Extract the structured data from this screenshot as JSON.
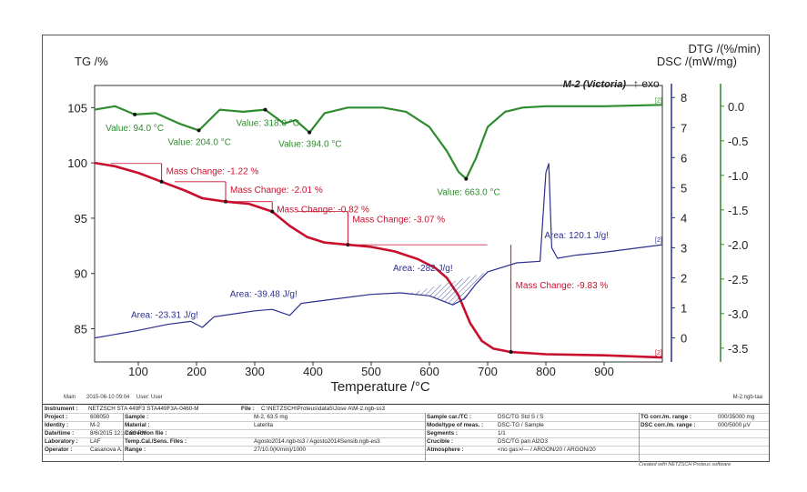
{
  "chart_data": {
    "type": "line",
    "title": "M-2 (Victoria)",
    "exo_label": "↑ exo",
    "xlabel": "Temperature /°C",
    "xlim": [
      25,
      1000
    ],
    "xticks": [
      100,
      200,
      300,
      400,
      500,
      600,
      700,
      800,
      900
    ],
    "axes": {
      "tg": {
        "label": "TG /%",
        "ylim": [
          82,
          107
        ],
        "ticks": [
          85,
          90,
          95,
          100,
          105
        ]
      },
      "dsc": {
        "label": "DSC /(mW/mg)",
        "ylim": [
          -0.8,
          8.4
        ],
        "ticks": [
          0,
          1,
          2,
          3,
          4,
          5,
          6,
          7,
          8
        ]
      },
      "dtg": {
        "label": "DTG /(%/min)",
        "ylim": [
          -3.7,
          0.3
        ],
        "ticks": [
          "0.0",
          "-0.5",
          "-1.0",
          "-1.5",
          "-2.0",
          "-2.5",
          "-3.0",
          "-3.5"
        ]
      }
    },
    "series": [
      {
        "key": "tg",
        "color": "#c8102e",
        "axis": "tg",
        "x": [
          25,
          60,
          100,
          140,
          180,
          210,
          250,
          290,
          330,
          360,
          390,
          420,
          460,
          500,
          540,
          580,
          610,
          630,
          650,
          670,
          690,
          710,
          740,
          800,
          900,
          1000
        ],
        "y": [
          100,
          99.7,
          99.1,
          98.3,
          97.5,
          96.8,
          96.5,
          96.3,
          95.6,
          94.3,
          93.3,
          92.8,
          92.6,
          92.4,
          92.0,
          91.3,
          90.5,
          89.6,
          88.0,
          85.5,
          83.9,
          83.2,
          82.9,
          82.7,
          82.6,
          82.4
        ],
        "end_label": "[2]"
      },
      {
        "key": "dsc",
        "color": "#2b2f8f",
        "axis": "dsc",
        "x": [
          25,
          100,
          150,
          190,
          210,
          230,
          300,
          330,
          360,
          380,
          400,
          500,
          550,
          600,
          640,
          660,
          680,
          700,
          750,
          790,
          800,
          805,
          810,
          820,
          850,
          900,
          1000
        ],
        "y": [
          0,
          0.25,
          0.45,
          0.55,
          0.35,
          0.7,
          0.9,
          0.95,
          0.75,
          1.15,
          1.2,
          1.45,
          1.5,
          1.4,
          1.1,
          1.3,
          1.8,
          2.2,
          2.5,
          2.55,
          5.5,
          5.8,
          3.0,
          2.65,
          2.75,
          2.85,
          3.1
        ],
        "end_label": "[2]"
      },
      {
        "key": "dtg",
        "color": "#2e8b2e",
        "axis": "dtg",
        "x": [
          25,
          60,
          94,
          130,
          170,
          204,
          240,
          280,
          318,
          350,
          370,
          394,
          420,
          460,
          520,
          560,
          600,
          630,
          650,
          663,
          680,
          700,
          730,
          760,
          800,
          900,
          1000
        ],
        "y": [
          -0.05,
          0.0,
          -0.12,
          -0.1,
          -0.25,
          -0.35,
          -0.05,
          -0.08,
          -0.05,
          -0.25,
          -0.2,
          -0.38,
          -0.1,
          -0.02,
          -0.02,
          -0.08,
          -0.3,
          -0.65,
          -0.95,
          -1.05,
          -0.75,
          -0.3,
          -0.08,
          -0.02,
          0.0,
          0.0,
          0.02
        ],
        "end_label": "[2]"
      }
    ],
    "tg_annotations": [
      {
        "text": "Mass Change: -1.22 %",
        "x": 140,
        "y_top": 99.95,
        "y_bot": 98.3
      },
      {
        "text": "Mass Change: -2.01 %",
        "x": 250,
        "y_top": 98.3,
        "y_bot": 96.5
      },
      {
        "text": "Mass Change: -0.82 %",
        "x": 330,
        "y_top": 96.5,
        "y_bot": 95.6
      },
      {
        "text": "Mass Change: -3.07 %",
        "x": 460,
        "y_top": 95.6,
        "y_bot": 92.6
      },
      {
        "text": "Mass Change: -9.83 %",
        "x": 740,
        "y_top": 92.6,
        "y_bot": 82.9
      }
    ],
    "dtg_peaks": [
      {
        "text": "Value: 94.0 °C",
        "x": 94,
        "y": -0.12
      },
      {
        "text": "Value: 204.0 °C",
        "x": 204,
        "y": -0.35
      },
      {
        "text": "Value: 318.0 °C",
        "x": 318,
        "y": -0.05
      },
      {
        "text": "Value: 394.0 °C",
        "x": 394,
        "y": -0.38
      },
      {
        "text": "Value: 663.0 °C",
        "x": 663,
        "y": -1.05
      }
    ],
    "dsc_areas": [
      {
        "text": "Area: -23.31 J/g!",
        "x": 150,
        "y": 0.55
      },
      {
        "text": "Area: -39.48 J/g!",
        "x": 320,
        "y": 1.25
      },
      {
        "text": "Area: -282 J/g!",
        "x": 600,
        "y": 2.1
      },
      {
        "text": "Area: 120.1 J/g!",
        "x": 860,
        "y": 3.2
      }
    ],
    "grid": false
  },
  "footer": {
    "main_label": "Main",
    "timestamp": "2015-06-10 09:04",
    "user": "User: User",
    "filename": "M-2.ngb-taa"
  },
  "info": {
    "instrument_key": "Instrument :",
    "instrument_val": "NETZSCH STA 449F3 STA449F3A-0460-M",
    "file_key": "File :",
    "file_val": "C:\\NETZSCH\\Proteus\\data5\\Jose A\\M-2.ngb-ss3",
    "left": [
      {
        "k": "Project :",
        "v": "608050"
      },
      {
        "k": "Identity :",
        "v": "M-2"
      },
      {
        "k": "Date/time :",
        "v": "8/6/2015 12:17:03 PM"
      },
      {
        "k": "Laboratory :",
        "v": "LAF"
      },
      {
        "k": "Operator :",
        "v": "Casanova A."
      }
    ],
    "mid": [
      {
        "k": "Sample :",
        "v": "M-2, 63.5 mg"
      },
      {
        "k": "Material :",
        "v": "Laterita"
      },
      {
        "k": "Correction file :",
        "v": ""
      },
      {
        "k": "Temp.Cal./Sens. Files :",
        "v": "Agosto2014.ngb-ts3 / Agosto2014Sensib.ngb-es3"
      },
      {
        "k": "Range :",
        "v": "27/10.0(K/min)/1000"
      }
    ],
    "right": [
      {
        "k": "Sample car./TC :",
        "v": "DSC/TG Std S / S"
      },
      {
        "k": "Mode/type of meas. :",
        "v": "DSC-TG / Sample"
      },
      {
        "k": "Segments :",
        "v": "1/1"
      },
      {
        "k": "Crucible :",
        "v": "DSC/TG pan Al2O3"
      },
      {
        "k": "Atmosphere :",
        "v": "<no gas>/--- / ARGON/20 / ARGON/20"
      }
    ],
    "corr": [
      {
        "k": "TG corr./m. range :",
        "v": "000/35000 mg"
      },
      {
        "k": "DSC corr./m. range :",
        "v": "000/5000 µV"
      }
    ],
    "credit": "Created with NETZSCH Proteus software"
  }
}
